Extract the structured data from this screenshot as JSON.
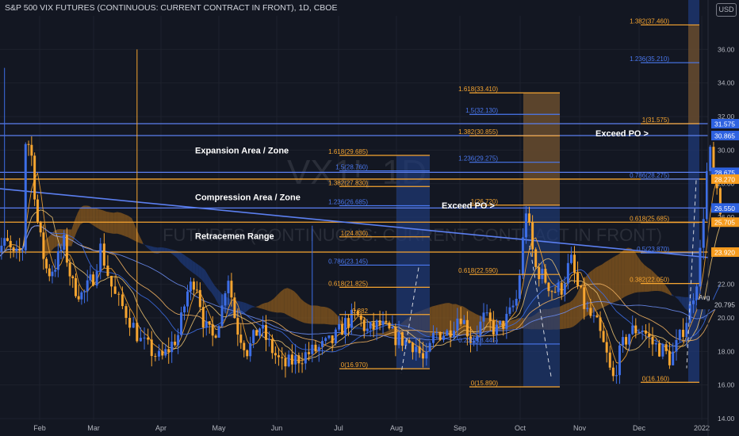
{
  "header": {
    "title": "S&P 500 VIX FUTURES (CONTINUOUS: CURRENT CONTRACT IN FRONT), 1D, CBOE",
    "currency": "USD"
  },
  "watermark": {
    "symbol": "VX1!, 1D",
    "subtitle": "FUTURES (CONTINUOUS: CURRENT CONTRACT IN FRONT)"
  },
  "colors": {
    "bg": "#131722",
    "orange": "#f7a530",
    "blue": "#3d6ee6",
    "line_blue": "#5b7ff0",
    "cloud_orange": "#8a5a1e",
    "cloud_blue": "#1e3a7a",
    "axis_text": "#b2b5be",
    "white": "#ffffff"
  },
  "chart_data": {
    "type": "candlestick",
    "x_ticks": [
      "Feb",
      "Mar",
      "Apr",
      "May",
      "Jun",
      "Jul",
      "Aug",
      "Sep",
      "Oct",
      "Nov",
      "Dec",
      "2022"
    ],
    "y_ticks": [
      14.0,
      16.0,
      18.0,
      20.0,
      22.0,
      24.0,
      26.0,
      28.0,
      30.0,
      32.0,
      34.0,
      36.0
    ],
    "ylim": [
      14.0,
      38.0
    ],
    "annotations": [
      {
        "text": "Expansion Area / Zone",
        "x": "Mar 12",
        "y": 30.0
      },
      {
        "text": "Compression Area / Zone",
        "x": "Mar 12",
        "y": 27.2
      },
      {
        "text": "Retracemen  Range",
        "x": "Mar 12",
        "y": 24.9
      },
      {
        "text": "Exceed PO >",
        "x": "Aug 25",
        "y": 26.7
      },
      {
        "text": "Exceed PO >",
        "x": "Nov 15",
        "y": 31.0
      }
    ],
    "horizontal_lines": [
      {
        "price": 31.575,
        "color": "blue",
        "label": "31.575"
      },
      {
        "price": 30.865,
        "color": "blue",
        "label": "30.865"
      },
      {
        "price": 28.675,
        "color": "blue",
        "label": "28.675"
      },
      {
        "price": 28.27,
        "color": "orange",
        "label": "28.270"
      },
      {
        "price": 26.55,
        "color": "blue",
        "label": "26.550"
      },
      {
        "price": 25.705,
        "color": "orange",
        "label": "25.705"
      },
      {
        "price": 23.92,
        "color": "orange",
        "label": "23.920"
      }
    ],
    "price_tags": [
      {
        "label": "20.795",
        "price": 20.795,
        "prefix": "Avg"
      }
    ],
    "fib_sets": [
      {
        "name": "fib-aug",
        "levels": [
          {
            "label": "1.618(29.685)",
            "price": 29.685,
            "color": "orange"
          },
          {
            "label": "1.5(28.760)",
            "price": 28.76,
            "color": "blue"
          },
          {
            "label": "1.382(27.830)",
            "price": 27.83,
            "color": "orange"
          },
          {
            "label": "1.236(26.685)",
            "price": 26.685,
            "color": "blue"
          },
          {
            "label": "1(24.830)",
            "price": 24.83,
            "color": "orange"
          },
          {
            "label": "0.786(23.145)",
            "price": 23.145,
            "color": "blue"
          },
          {
            "label": "0.618(21.825)",
            "price": 21.825,
            "color": "orange"
          },
          {
            "label": "0.382",
            "price": 20.2,
            "color": "orange"
          },
          {
            "label": "0(16.970)",
            "price": 16.97,
            "color": "orange"
          }
        ]
      },
      {
        "name": "fib-oct",
        "levels": [
          {
            "label": "1.618(33.410)",
            "price": 33.41,
            "color": "orange"
          },
          {
            "label": "1.5(32.130)",
            "price": 32.13,
            "color": "blue"
          },
          {
            "label": "1.382(30.855)",
            "price": 30.855,
            "color": "orange"
          },
          {
            "label": "1.236(29.275)",
            "price": 29.275,
            "color": "blue"
          },
          {
            "label": "1(26.720)",
            "price": 26.72,
            "color": "orange"
          },
          {
            "label": "0.618(22.590)",
            "price": 22.59,
            "color": "orange"
          },
          {
            "label": "0.236(18.445)",
            "price": 18.445,
            "color": "blue"
          },
          {
            "label": "0(15.890)",
            "price": 15.89,
            "color": "orange"
          }
        ]
      },
      {
        "name": "fib-dec",
        "levels": [
          {
            "label": "1.382(37.460)",
            "price": 37.46,
            "color": "orange"
          },
          {
            "label": "1.236(35.210)",
            "price": 35.21,
            "color": "blue"
          },
          {
            "label": "1(31.575)",
            "price": 31.575,
            "color": "orange"
          },
          {
            "label": "0.786(28.275)",
            "price": 28.275,
            "color": "blue"
          },
          {
            "label": "0.618(25.685)",
            "price": 25.685,
            "color": "orange"
          },
          {
            "label": "0.5(23.870)",
            "price": 23.87,
            "color": "blue"
          },
          {
            "label": "0.382(22.050)",
            "price": 22.05,
            "color": "orange"
          },
          {
            "label": "0(16.160)",
            "price": 16.16,
            "color": "orange"
          }
        ]
      }
    ],
    "grid": true,
    "legend": "none"
  }
}
